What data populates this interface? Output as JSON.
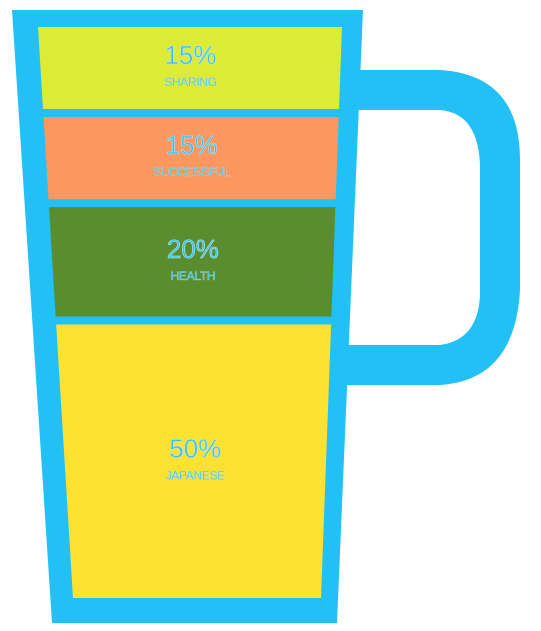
{
  "colors": {
    "mug": "#22c0f4",
    "text": "#2ec3f5",
    "text_outline": "#b9e4f2"
  },
  "chart_data": {
    "type": "stacked-bar",
    "title": "",
    "categories": [
      "SHARING",
      "SUCCESSFUL",
      "HEALTH",
      "JAPANESE"
    ],
    "values": [
      15,
      15,
      20,
      50
    ],
    "labels": [
      "15%",
      "15%",
      "20%",
      "50%"
    ],
    "colors": [
      "#dbeb36",
      "#fc9760",
      "#5a8d2e",
      "#fde232"
    ]
  }
}
